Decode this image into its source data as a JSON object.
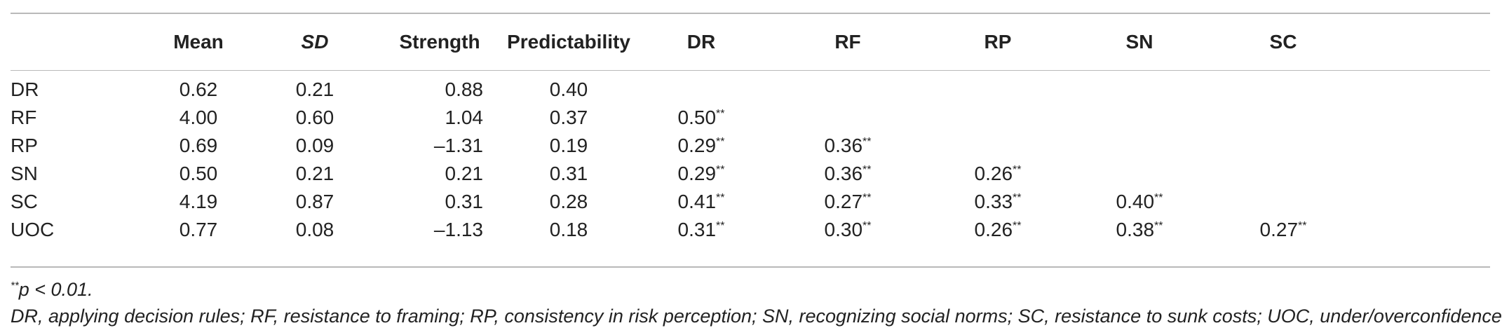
{
  "table": {
    "headers": [
      "",
      "Mean",
      "SD",
      "Strength",
      "Predictability",
      "DR",
      "RF",
      "RP",
      "SN",
      "SC"
    ],
    "header_italic": [
      false,
      false,
      true,
      false,
      false,
      false,
      false,
      false,
      false,
      false
    ],
    "rows": [
      {
        "label": "DR",
        "mean": "0.62",
        "sd": "0.21",
        "strength": "0.88",
        "predictability": "0.40",
        "corr": []
      },
      {
        "label": "RF",
        "mean": "4.00",
        "sd": "0.60",
        "strength": "1.04",
        "predictability": "0.37",
        "corr": [
          "0.50"
        ]
      },
      {
        "label": "RP",
        "mean": "0.69",
        "sd": "0.09",
        "strength": "–1.31",
        "predictability": "0.19",
        "corr": [
          "0.29",
          "0.36"
        ]
      },
      {
        "label": "SN",
        "mean": "0.50",
        "sd": "0.21",
        "strength": "0.21",
        "predictability": "0.31",
        "corr": [
          "0.29",
          "0.36",
          "0.26"
        ]
      },
      {
        "label": "SC",
        "mean": "4.19",
        "sd": "0.87",
        "strength": "0.31",
        "predictability": "0.28",
        "corr": [
          "0.41",
          "0.27",
          "0.33",
          "0.40"
        ]
      },
      {
        "label": "UOC",
        "mean": "0.77",
        "sd": "0.08",
        "strength": "–1.13",
        "predictability": "0.18",
        "corr": [
          "0.31",
          "0.30",
          "0.26",
          "0.38",
          "0.27"
        ]
      }
    ],
    "significance_marker": "**"
  },
  "notes": {
    "significance_marker": "**",
    "significance": "p < 0.01.",
    "abbreviations": "DR, applying decision rules; RF, resistance to framing; RP, consistency in risk perception; SN, recognizing social norms; SC, resistance to sunk costs; UOC, under/overconfidence."
  }
}
